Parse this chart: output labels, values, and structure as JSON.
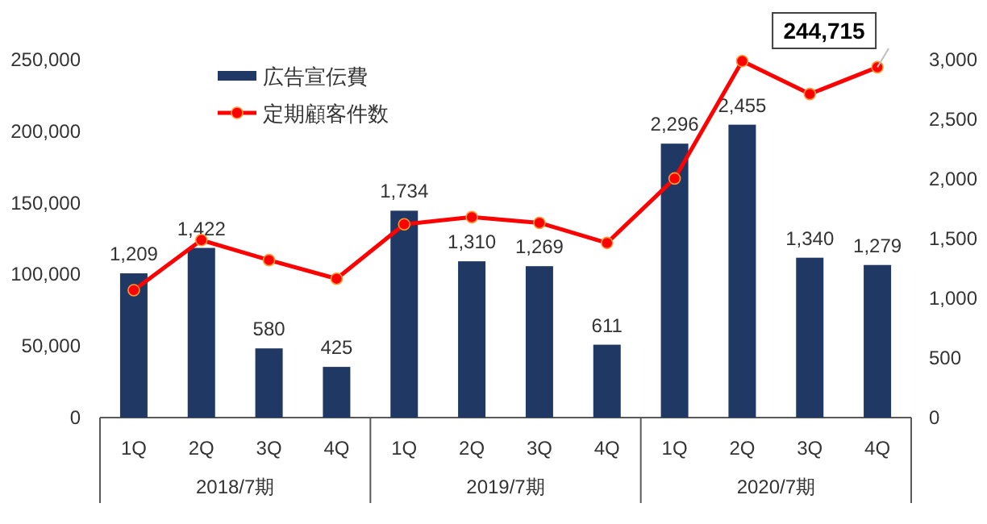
{
  "chart_data": {
    "type": "bar",
    "categories": [
      "1Q",
      "2Q",
      "3Q",
      "4Q",
      "1Q",
      "2Q",
      "3Q",
      "4Q",
      "1Q",
      "2Q",
      "3Q",
      "4Q"
    ],
    "series": [
      {
        "name": "広告宣伝費",
        "axis": "y2",
        "color": "#203864",
        "values": [
          1209,
          1422,
          580,
          425,
          1734,
          1310,
          1269,
          611,
          2296,
          2455,
          1340,
          1279
        ],
        "value_labels": [
          "1,209",
          "1,422",
          "580",
          "425",
          "1,734",
          "1,310",
          "1,269",
          "611",
          "2,296",
          "2,455",
          "1,340",
          "1,279"
        ]
      },
      {
        "name": "定期顧客件数",
        "type": "line",
        "color": "#ff0000",
        "values": [
          89000,
          124000,
          110000,
          97000,
          135000,
          140000,
          136000,
          122000,
          167000,
          249000,
          226000,
          244715
        ]
      }
    ],
    "ylim": [
      0,
      250000
    ],
    "yticks": [
      {
        "value": 0,
        "label": "0"
      },
      {
        "value": 50000,
        "label": "50,000"
      },
      {
        "value": 100000,
        "label": "100,000"
      },
      {
        "value": 150000,
        "label": "150,000"
      },
      {
        "value": 200000,
        "label": "200,000"
      },
      {
        "value": 250000,
        "label": "250,000"
      }
    ],
    "y2lim": [
      0,
      3000
    ],
    "y2ticks": [
      {
        "value": 0,
        "label": "0"
      },
      {
        "value": 500,
        "label": "500"
      },
      {
        "value": 1000,
        "label": "1,000"
      },
      {
        "value": 1500,
        "label": "1,500"
      },
      {
        "value": 2000,
        "label": "2,000"
      },
      {
        "value": 2500,
        "label": "2,500"
      },
      {
        "value": 3000,
        "label": "3,000"
      }
    ],
    "annotations": [
      "2018/7期",
      "2019/7期",
      "2020/7期",
      "244,715"
    ],
    "legend": "top left",
    "marker": "circle"
  }
}
